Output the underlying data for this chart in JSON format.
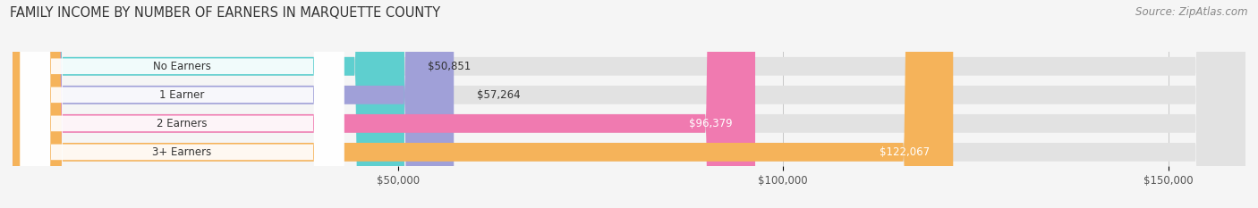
{
  "title": "FAMILY INCOME BY NUMBER OF EARNERS IN MARQUETTE COUNTY",
  "source": "Source: ZipAtlas.com",
  "categories": [
    "No Earners",
    "1 Earner",
    "2 Earners",
    "3+ Earners"
  ],
  "values": [
    50851,
    57264,
    96379,
    122067
  ],
  "bar_colors": [
    "#5ecfcf",
    "#a0a0d8",
    "#f07ab0",
    "#f5b35a"
  ],
  "bar_bg_color": "#e2e2e2",
  "value_labels": [
    "$50,851",
    "$57,264",
    "$96,379",
    "$122,067"
  ],
  "x_ticks": [
    50000,
    100000,
    150000
  ],
  "x_tick_labels": [
    "$50,000",
    "$100,000",
    "$150,000"
  ],
  "xlim": [
    0,
    160000
  ],
  "background_color": "#f5f5f5",
  "title_fontsize": 10.5,
  "source_fontsize": 8.5,
  "bar_label_fontsize": 8.5,
  "value_label_fontsize": 8.5
}
